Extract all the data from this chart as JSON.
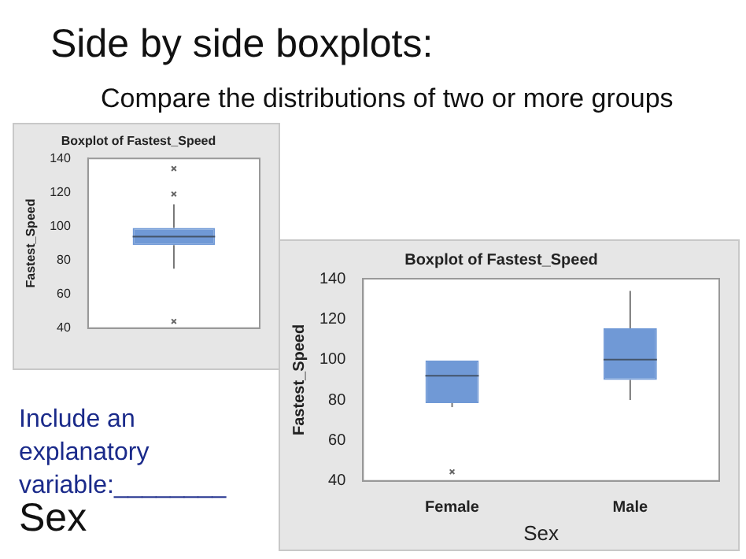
{
  "chart_data": [
    {
      "type": "other",
      "title": "Side by side boxplots:",
      "subtitle": "Compare the distributions of two or more groups",
      "annotations": [
        "Include an explanatory variable:________",
        "Sex"
      ]
    },
    {
      "type": "box",
      "title": "Boxplot of Fastest_Speed",
      "ylabel": "Fastest_Speed",
      "categories": [
        null
      ],
      "ylim": [
        40,
        140
      ],
      "yticks": [
        40,
        60,
        80,
        100,
        120,
        140
      ],
      "grid": false,
      "legend": false,
      "series": [
        {
          "color": "#7099d6",
          "boxes": [
            {
              "low": 75,
              "q1": 89,
              "median": 94,
              "q3": 99,
              "high": 113,
              "outliers": [
                119,
                134,
                44
              ]
            }
          ]
        }
      ]
    },
    {
      "type": "box",
      "title": "Boxplot of Fastest_Speed",
      "xlabel": "Sex",
      "ylabel": "Fastest_Speed",
      "categories": [
        "Female",
        "Male"
      ],
      "ylim": [
        40,
        140
      ],
      "yticks": [
        40,
        60,
        80,
        100,
        120,
        140
      ],
      "grid": false,
      "legend": false,
      "series": [
        {
          "color": "#7099d6",
          "boxes": [
            {
              "low": 76.5,
              "q1": 78.5,
              "median": 92,
              "q3": 99.5,
              "high": 99.5,
              "outliers": [
                44.5
              ]
            },
            {
              "low": 80,
              "q1": 90,
              "median": 100,
              "q3": 115.5,
              "high": 134
            }
          ]
        }
      ]
    }
  ]
}
